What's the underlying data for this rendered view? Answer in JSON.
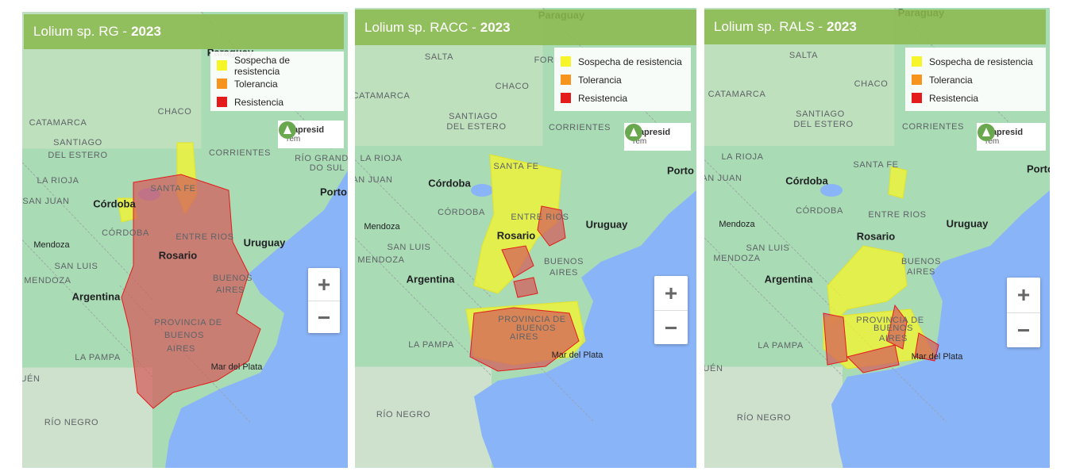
{
  "panels": [
    {
      "title": "Lolium sp. RG -",
      "year": "2023",
      "legend": [
        "Sospecha de resistencia",
        "Tolerancia",
        "Resistencia"
      ],
      "logo": {
        "name": "Aapresid",
        "sub": "rem"
      },
      "zoom": [
        "+",
        "−"
      ],
      "labels": [
        "Paraguay",
        "CHACO",
        "CATAMARCA",
        "SANTIAGO",
        "DEL ESTERO",
        "CORRIENTES",
        "RÍO GRAND",
        "DO SUL",
        "LA RIOJA",
        "SAN JUAN",
        "Córdoba",
        "SANTA FE",
        "Porto",
        "CÓRDOBA",
        "ENTRE RIOS",
        "Uruguay",
        "Mendoza",
        "Rosario",
        "SAN LUIS",
        "BUENOS",
        "AIRES",
        "MENDOZA",
        "Argentina",
        "PROVINCIA DE",
        "BUENOS",
        "AIRES",
        "LA PAMPA",
        "Mar del Plata",
        "UÉN",
        "RÍO NEGRO"
      ]
    },
    {
      "title": "Lolium sp. RACC -",
      "year": "2023",
      "legend": [
        "Sospecha de resistencia",
        "Tolerancia",
        "Resistencia"
      ],
      "logo": {
        "name": "Aapresid",
        "sub": "rem"
      },
      "zoom": [
        "+",
        "−"
      ],
      "labels": [
        "Paraguay",
        "SALTA",
        "FORM",
        "CHACO",
        "CATAMARCA",
        "SANTIAGO",
        "DEL ESTERO",
        "CORRIENTES",
        "LA RIOJA",
        "SANTA FE",
        "Porto",
        "SAN JUAN",
        "Córdoba",
        "CÓRDOBA",
        "ENTRE RIOS",
        "Uruguay",
        "Mendoza",
        "Rosario",
        "SAN LUIS",
        "BUENOS",
        "AIRES",
        "MENDOZA",
        "Argentina",
        "PROVINCIA DE",
        "BUENOS",
        "AIRES",
        "LA PAMPA",
        "Mar del Plata",
        "RÍO NEGRO"
      ]
    },
    {
      "title": "Lolium sp. RALS -",
      "year": "2023",
      "legend": [
        "Sospecha de resistencia",
        "Tolerancia",
        "Resistencia"
      ],
      "logo": {
        "name": "Aapresid",
        "sub": "rem"
      },
      "zoom": [
        "+",
        "−"
      ],
      "labels": [
        "Paraguay",
        "SALTA",
        "CHACO",
        "CATAMARCA",
        "SANTIAGO",
        "DEL ESTERO",
        "CORRIENTES",
        "LA RIOJA",
        "SANTA FE",
        "Porto",
        "SAN JUAN",
        "Córdoba",
        "CÓRDOBA",
        "ENTRE RIOS",
        "Uruguay",
        "Mendoza",
        "Rosario",
        "SAN LUIS",
        "BUENOS",
        "AIRES",
        "MENDOZA",
        "Argentina",
        "PROVINCIA DE",
        "BUENOS",
        "AIRES",
        "LA PAMPA",
        "Mar del Plata",
        "UÉN",
        "RÍO NEGRO"
      ]
    }
  ]
}
